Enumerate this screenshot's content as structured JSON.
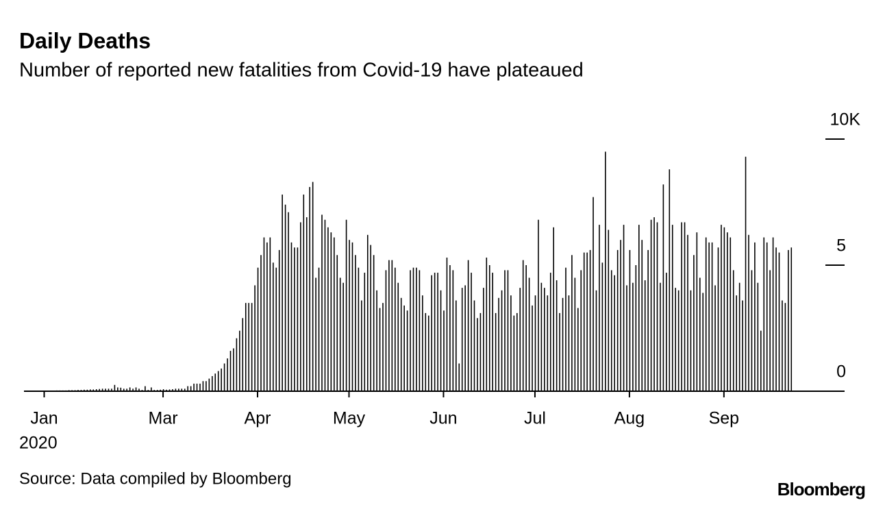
{
  "chart_data": {
    "type": "bar",
    "title": "Daily Deaths",
    "subtitle": "Number of reported new fatalities from Covid-19 have plateaued",
    "source": "Source: Data compiled by Bloomberg",
    "logo": "Bloomberg",
    "x_sublabel": "2020",
    "color": "#000000",
    "ylim": [
      0,
      10
    ],
    "yticks": [
      0,
      5,
      {
        "value": 10,
        "label": "10K"
      }
    ],
    "categories": [
      "Jan",
      null,
      null,
      null,
      null,
      null,
      null,
      null,
      null,
      null,
      null,
      null,
      null,
      null,
      null,
      null,
      null,
      null,
      null,
      null,
      null,
      null,
      null,
      null,
      null,
      null,
      null,
      null,
      null,
      null,
      null,
      null,
      null,
      null,
      null,
      null,
      null,
      null,
      null,
      "Mar",
      null,
      null,
      null,
      null,
      null,
      null,
      null,
      null,
      null,
      null,
      null,
      null,
      null,
      null,
      null,
      null,
      null,
      null,
      null,
      null,
      null,
      null,
      null,
      null,
      null,
      null,
      null,
      null,
      null,
      null,
      "Apr",
      null,
      null,
      null,
      null,
      null,
      null,
      null,
      null,
      null,
      null,
      null,
      null,
      null,
      null,
      null,
      null,
      null,
      null,
      null,
      null,
      null,
      null,
      null,
      null,
      null,
      null,
      null,
      null,
      null,
      "May",
      null,
      null,
      null,
      null,
      null,
      null,
      null,
      null,
      null,
      null,
      null,
      null,
      null,
      null,
      null,
      null,
      null,
      null,
      null,
      null,
      null,
      null,
      null,
      null,
      null,
      null,
      null,
      null,
      null,
      null,
      "Jun",
      null,
      null,
      null,
      null,
      null,
      null,
      null,
      null,
      null,
      null,
      null,
      null,
      null,
      null,
      null,
      null,
      null,
      null,
      null,
      null,
      null,
      null,
      null,
      null,
      null,
      null,
      null,
      null,
      null,
      "Jul",
      null,
      null,
      null,
      null,
      null,
      null,
      null,
      null,
      null,
      null,
      null,
      null,
      null,
      null,
      null,
      null,
      null,
      null,
      null,
      null,
      null,
      null,
      null,
      null,
      null,
      null,
      null,
      null,
      null,
      null,
      "Aug",
      null,
      null,
      null,
      null,
      null,
      null,
      null,
      null,
      null,
      null,
      null,
      null,
      null,
      null,
      null,
      null,
      null,
      null,
      null,
      null,
      null,
      null,
      null,
      null,
      null,
      null,
      null,
      null,
      null,
      null,
      "Sep",
      null,
      null,
      null,
      null,
      null,
      null,
      null,
      null,
      null,
      null,
      null,
      null,
      null,
      null,
      null,
      null,
      null,
      null,
      null,
      null,
      null
    ],
    "values": [
      0.02,
      0.01,
      0.02,
      0.03,
      0.03,
      0.03,
      0.03,
      0.04,
      0.04,
      0.04,
      0.05,
      0.05,
      0.06,
      0.06,
      0.07,
      0.07,
      0.08,
      0.09,
      0.1,
      0.1,
      0.1,
      0.1,
      0.25,
      0.15,
      0.14,
      0.1,
      0.1,
      0.15,
      0.1,
      0.15,
      0.1,
      0.05,
      0.2,
      0.05,
      0.15,
      0.05,
      0.05,
      0.06,
      0.08,
      0.06,
      0.07,
      0.08,
      0.1,
      0.1,
      0.1,
      0.1,
      0.2,
      0.2,
      0.3,
      0.3,
      0.3,
      0.4,
      0.4,
      0.5,
      0.6,
      0.7,
      0.8,
      0.9,
      1.1,
      1.3,
      1.6,
      1.7,
      2.1,
      2.4,
      2.9,
      3.5,
      3.5,
      3.5,
      4.2,
      4.9,
      5.4,
      6.1,
      5.9,
      6.1,
      5.1,
      4.9,
      5.6,
      7.8,
      7.4,
      7.1,
      5.9,
      5.7,
      5.7,
      6.7,
      7.8,
      6.9,
      8.1,
      8.3,
      4.5,
      4.9,
      7.0,
      6.8,
      6.5,
      6.3,
      6.1,
      5.4,
      4.5,
      4.3,
      6.8,
      6.0,
      5.9,
      5.4,
      4.9,
      3.6,
      4.7,
      6.2,
      5.8,
      5.4,
      4.0,
      3.3,
      3.5,
      4.8,
      5.2,
      5.2,
      4.9,
      4.3,
      3.7,
      3.4,
      3.2,
      4.8,
      4.9,
      4.9,
      4.8,
      3.8,
      3.1,
      3.0,
      4.6,
      4.7,
      4.7,
      4.0,
      3.2,
      5.3,
      5.0,
      4.8,
      3.6,
      1.1,
      4.1,
      4.2,
      5.2,
      4.7,
      3.6,
      2.9,
      3.1,
      4.1,
      5.3,
      5.0,
      4.7,
      3.1,
      3.7,
      4.0,
      4.8,
      4.8,
      3.8,
      3.0,
      3.1,
      4.1,
      5.2,
      5.0,
      4.5,
      3.4,
      3.8,
      6.8,
      4.3,
      4.1,
      3.8,
      4.7,
      6.5,
      4.4,
      3.1,
      3.7,
      4.9,
      3.8,
      5.4,
      4.5,
      3.3,
      4.8,
      5.5,
      5.5,
      5.6,
      7.7,
      4.0,
      6.6,
      5.1,
      9.5,
      6.4,
      4.8,
      4.6,
      5.6,
      6.0,
      6.6,
      4.2,
      5.6,
      4.3,
      5.0,
      6.6,
      6.0,
      4.4,
      5.6,
      6.8,
      6.9,
      6.7,
      4.3,
      8.2,
      4.7,
      8.8,
      6.6,
      4.1,
      4.0,
      6.7,
      6.7,
      6.2,
      4.0,
      5.4,
      6.3,
      4.5,
      3.9,
      6.1,
      5.9,
      5.9,
      4.2,
      5.7,
      6.6,
      6.5,
      6.3,
      6.1,
      4.8,
      3.8,
      4.3,
      3.6,
      9.3,
      6.2,
      4.8,
      5.9,
      4.3,
      2.4,
      6.1,
      5.9,
      4.8,
      6.1,
      5.7,
      5.5,
      3.6,
      3.5,
      5.6,
      5.7
    ]
  }
}
